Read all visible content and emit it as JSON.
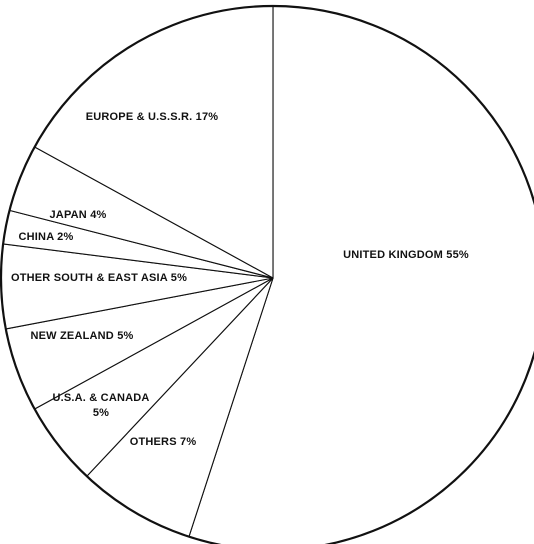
{
  "chart_data": {
    "type": "pie",
    "title": "",
    "start_angle_deg": 0,
    "direction": "clockwise",
    "slices": [
      {
        "label": "UNITED KINGDOM 55%",
        "value": 55
      },
      {
        "label": "OTHERS 7%",
        "value": 7
      },
      {
        "label": "U.S.A. & CANADA",
        "label2": "5%",
        "value": 5
      },
      {
        "label": "NEW ZEALAND 5%",
        "value": 5
      },
      {
        "label": "OTHER SOUTH & EAST ASIA 5%",
        "value": 5
      },
      {
        "label": "CHINA 2%",
        "value": 2
      },
      {
        "label": "JAPAN 4%",
        "value": 4
      },
      {
        "label": "EUROPE & U.S.S.R. 17%",
        "value": 17
      }
    ]
  }
}
